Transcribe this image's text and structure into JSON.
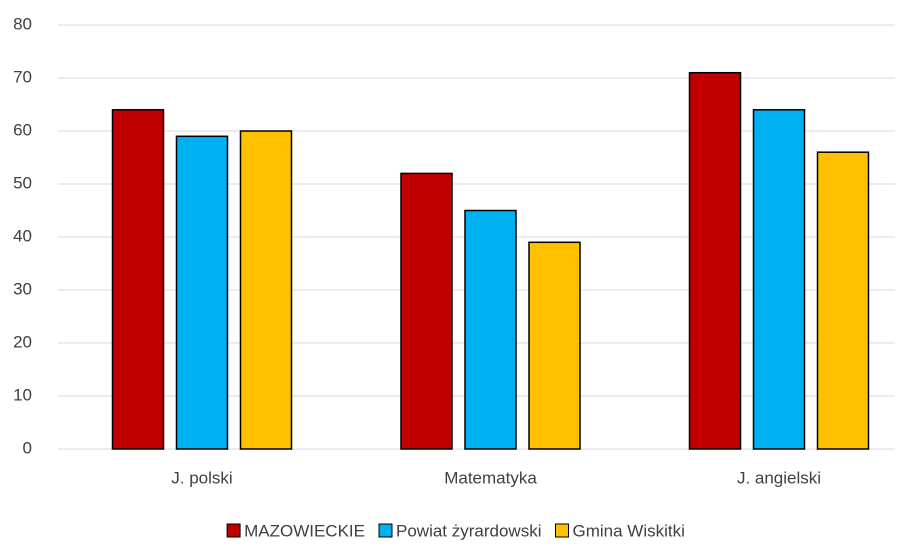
{
  "chart_data": {
    "type": "bar",
    "categories": [
      "J. polski",
      "Matematyka",
      "J. angielski"
    ],
    "series": [
      {
        "name": "MAZOWIECKIE",
        "color": "#c00000",
        "values": [
          64,
          52,
          71
        ]
      },
      {
        "name": "Powiat żyrardowski",
        "color": "#00b0f0",
        "values": [
          59,
          45,
          64
        ]
      },
      {
        "name": "Gmina Wiskitki",
        "color": "#ffc000",
        "values": [
          60,
          39,
          56
        ]
      }
    ],
    "ylim": [
      0,
      80
    ],
    "yticks": [
      0,
      10,
      20,
      30,
      40,
      50,
      60,
      70,
      80
    ],
    "grid": true,
    "legend": "bottom"
  }
}
